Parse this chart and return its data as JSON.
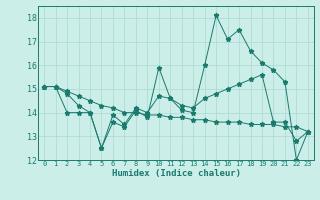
{
  "xlabel": "Humidex (Indice chaleur)",
  "background_color": "#cceee8",
  "grid_color": "#aad8d0",
  "line_color": "#1a7a6e",
  "x": [
    0,
    1,
    2,
    3,
    4,
    5,
    6,
    7,
    8,
    9,
    10,
    11,
    12,
    13,
    14,
    15,
    16,
    17,
    18,
    19,
    20,
    21,
    22,
    23
  ],
  "line1": [
    15.1,
    15.1,
    14.0,
    14.0,
    14.0,
    12.5,
    13.6,
    13.4,
    14.1,
    13.8,
    15.9,
    14.6,
    14.1,
    14.0,
    16.0,
    18.1,
    17.1,
    17.5,
    16.6,
    16.1,
    15.8,
    15.3,
    12.0,
    13.2
  ],
  "line2": [
    15.1,
    15.1,
    14.8,
    14.3,
    14.0,
    12.5,
    13.9,
    13.5,
    14.2,
    14.0,
    14.7,
    14.6,
    14.3,
    14.2,
    14.6,
    14.8,
    15.0,
    15.2,
    15.4,
    15.6,
    13.6,
    13.6,
    12.8,
    13.2
  ],
  "line3": [
    15.1,
    15.1,
    14.9,
    14.7,
    14.5,
    14.3,
    14.2,
    14.0,
    14.0,
    13.9,
    13.9,
    13.8,
    13.8,
    13.7,
    13.7,
    13.6,
    13.6,
    13.6,
    13.5,
    13.5,
    13.5,
    13.4,
    13.4,
    13.2
  ],
  "ylim": [
    12,
    18.5
  ],
  "xlim": [
    -0.5,
    23.5
  ],
  "yticks": [
    12,
    13,
    14,
    15,
    16,
    17,
    18
  ],
  "xticks": [
    0,
    1,
    2,
    3,
    4,
    5,
    6,
    7,
    8,
    9,
    10,
    11,
    12,
    13,
    14,
    15,
    16,
    17,
    18,
    19,
    20,
    21,
    22,
    23
  ]
}
